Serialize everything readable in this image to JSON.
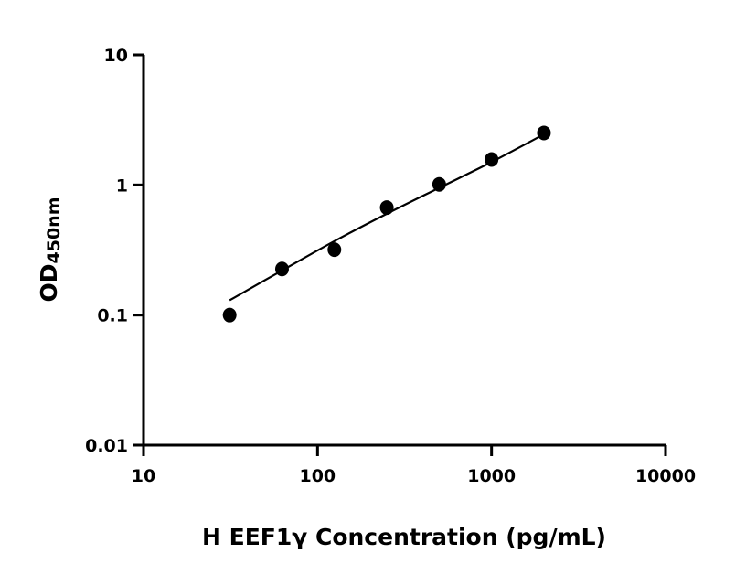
{
  "chart_data": {
    "type": "scatter",
    "title": "",
    "xlabel": "H EEF1γ Concentration (pg/mL)",
    "ylabel_main": "OD",
    "ylabel_sub": "450nm",
    "x_scale": "log",
    "y_scale": "log",
    "xlim": [
      10,
      10000
    ],
    "ylim": [
      0.01,
      10
    ],
    "x_ticks": [
      "10",
      "100",
      "1000",
      "10000"
    ],
    "y_ticks": [
      "0.01",
      "0.1",
      "1",
      "10"
    ],
    "grid": false,
    "legend": "none",
    "color": "#000000",
    "points": [
      {
        "x": 31.25,
        "y": 0.1
      },
      {
        "x": 62.5,
        "y": 0.226
      },
      {
        "x": 125,
        "y": 0.318
      },
      {
        "x": 250,
        "y": 0.67
      },
      {
        "x": 500,
        "y": 1.01
      },
      {
        "x": 1000,
        "y": 1.57
      },
      {
        "x": 2000,
        "y": 2.51
      }
    ],
    "fit_curve": [
      {
        "x": 31.25,
        "y": 0.13
      },
      {
        "x": 62.5,
        "y": 0.22
      },
      {
        "x": 125,
        "y": 0.37
      },
      {
        "x": 250,
        "y": 0.6
      },
      {
        "x": 500,
        "y": 0.95
      },
      {
        "x": 1000,
        "y": 1.5
      },
      {
        "x": 2000,
        "y": 2.45
      }
    ]
  }
}
